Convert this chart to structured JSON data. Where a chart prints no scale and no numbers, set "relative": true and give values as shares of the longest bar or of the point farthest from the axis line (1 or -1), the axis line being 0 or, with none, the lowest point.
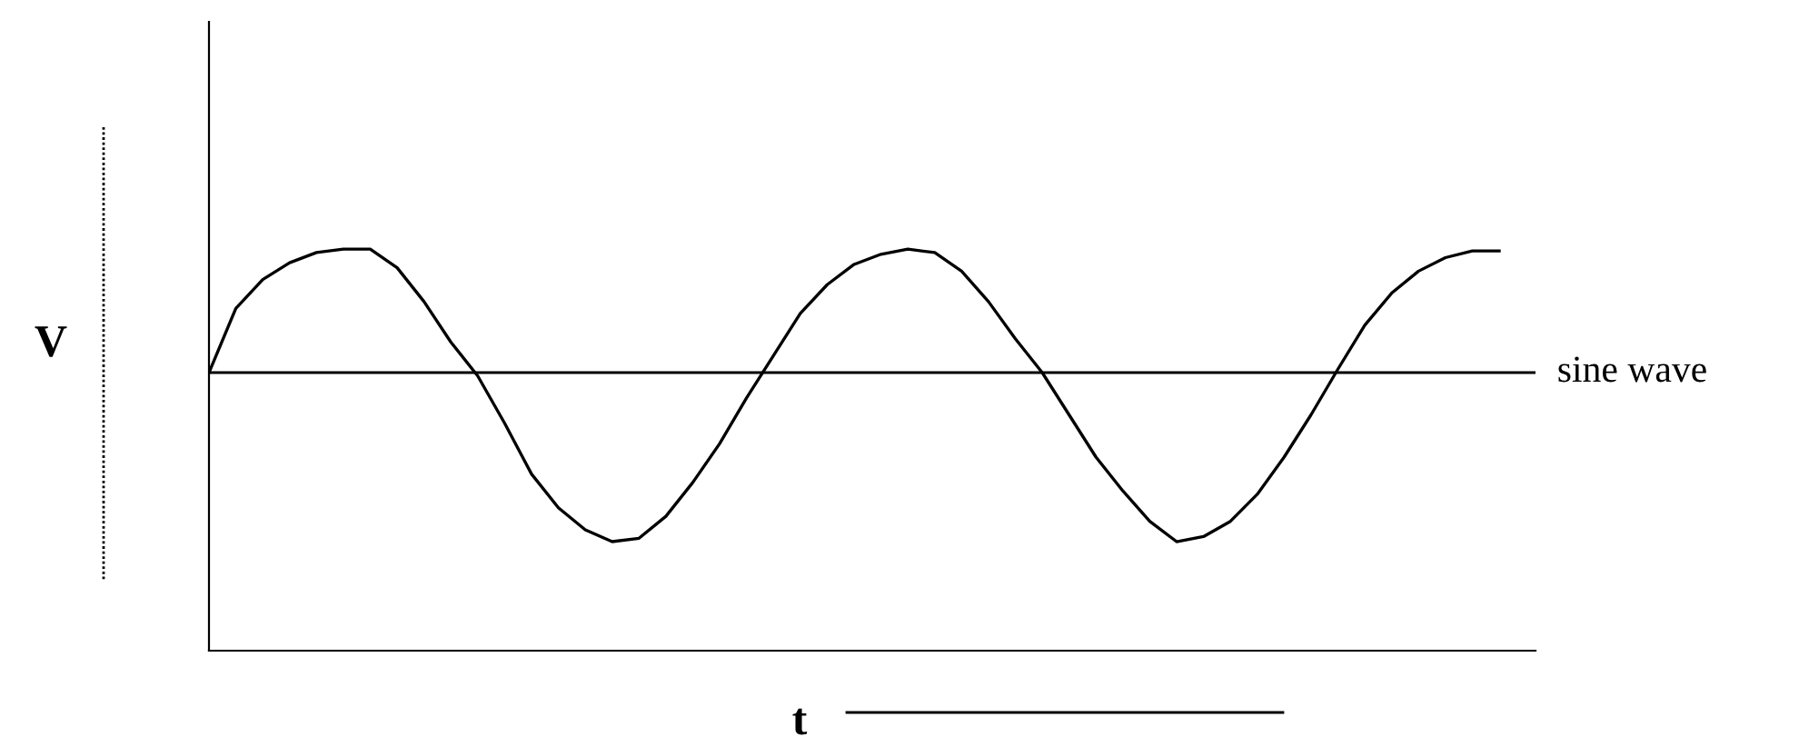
{
  "chart_data": {
    "type": "line",
    "relative": true,
    "xlabel": "t",
    "ylabel": "V",
    "categories": [
      null,
      null,
      null,
      null,
      null,
      null,
      null,
      null,
      null,
      null,
      null,
      null,
      null,
      null,
      null,
      null,
      null,
      null,
      null,
      null,
      null,
      null,
      null,
      null,
      null,
      null,
      null,
      null,
      null,
      null,
      null,
      null,
      null,
      null,
      null,
      null,
      null,
      null,
      null,
      null,
      null,
      null,
      null,
      null,
      null,
      null,
      null,
      null,
      null
    ],
    "series": [
      {
        "name": "sine wave",
        "color": "#000000",
        "values": [
          0,
          0.38,
          0.55,
          0.65,
          0.71,
          0.73,
          0.73,
          0.62,
          0.42,
          0.18,
          -0.02,
          -0.3,
          -0.6,
          -0.8,
          -0.93,
          -1,
          -0.98,
          -0.85,
          -0.65,
          -0.42,
          -0.15,
          0.1,
          0.35,
          0.52,
          0.64,
          0.7,
          0.73,
          0.71,
          0.6,
          0.42,
          0.2,
          0.0,
          -0.25,
          -0.5,
          -0.7,
          -0.88,
          -1,
          -0.97,
          -0.88,
          -0.72,
          -0.5,
          -0.25,
          0.02,
          0.28,
          0.47,
          0.6,
          0.68,
          0.72,
          0.72
        ]
      }
    ],
    "legend": false
  }
}
